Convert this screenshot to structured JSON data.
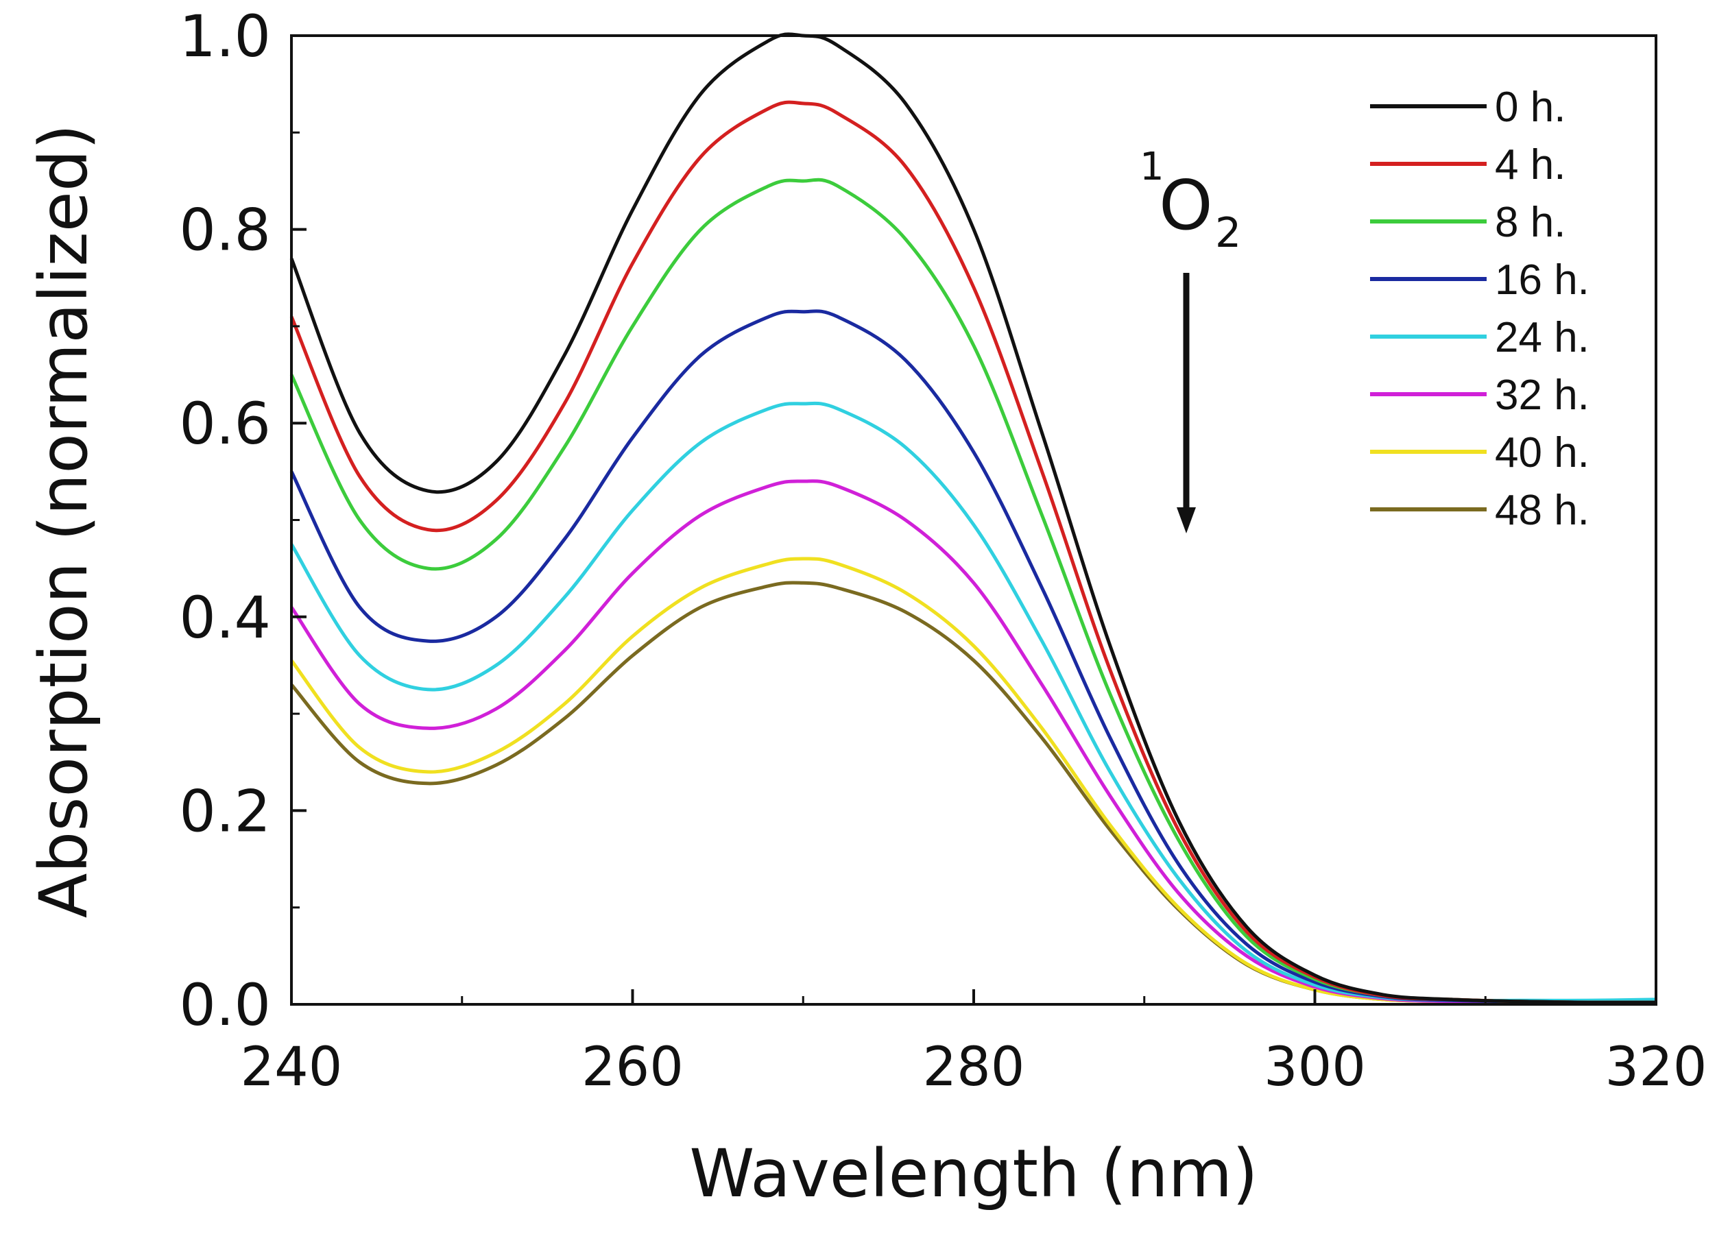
{
  "chart_data": {
    "type": "line",
    "xlabel": "Wavelength (nm)",
    "ylabel": "Absorption (normalized)",
    "xlim": [
      240,
      320
    ],
    "ylim": [
      0,
      1.0
    ],
    "x_ticks": [
      "240",
      "260",
      "280",
      "300",
      "320"
    ],
    "x_tick_values": [
      240,
      260,
      280,
      300,
      320
    ],
    "y_ticks": [
      "0.0",
      "0.2",
      "0.4",
      "0.6",
      "0.8",
      "1.0"
    ],
    "y_tick_values": [
      0,
      0.2,
      0.4,
      0.6,
      0.8,
      1.0
    ],
    "grid": false,
    "legend_position": "top-right",
    "annotation": {
      "superscript": "1",
      "main": "O",
      "subscript": "2",
      "arrow": "down"
    },
    "x": [
      240,
      244,
      248,
      252,
      256,
      260,
      264,
      268,
      270,
      272,
      276,
      280,
      284,
      288,
      292,
      296,
      300,
      304,
      308,
      312,
      316,
      320
    ],
    "series": [
      {
        "name": "0 h.",
        "color": "#111111",
        "values": [
          0.77,
          0.59,
          0.53,
          0.56,
          0.67,
          0.82,
          0.94,
          0.995,
          1.0,
          0.99,
          0.93,
          0.8,
          0.59,
          0.37,
          0.19,
          0.08,
          0.03,
          0.01,
          0.005,
          0.003,
          0.002,
          0.002
        ]
      },
      {
        "name": "4 h.",
        "color": "#d42020",
        "values": [
          0.71,
          0.545,
          0.49,
          0.52,
          0.62,
          0.765,
          0.875,
          0.925,
          0.93,
          0.92,
          0.865,
          0.74,
          0.55,
          0.345,
          0.18,
          0.075,
          0.028,
          0.009,
          0.005,
          0.003,
          0.002,
          0.002
        ]
      },
      {
        "name": "8 h.",
        "color": "#3ccc3c",
        "values": [
          0.65,
          0.5,
          0.45,
          0.48,
          0.575,
          0.7,
          0.8,
          0.845,
          0.85,
          0.845,
          0.79,
          0.68,
          0.505,
          0.32,
          0.17,
          0.07,
          0.026,
          0.009,
          0.005,
          0.003,
          0.002,
          0.002
        ]
      },
      {
        "name": "16 h.",
        "color": "#1a2aa0",
        "values": [
          0.55,
          0.41,
          0.375,
          0.4,
          0.48,
          0.585,
          0.67,
          0.71,
          0.715,
          0.71,
          0.665,
          0.57,
          0.43,
          0.275,
          0.145,
          0.062,
          0.023,
          0.008,
          0.004,
          0.003,
          0.002,
          0.002
        ]
      },
      {
        "name": "24 h.",
        "color": "#30d0e0",
        "values": [
          0.475,
          0.36,
          0.325,
          0.35,
          0.42,
          0.51,
          0.58,
          0.615,
          0.62,
          0.615,
          0.575,
          0.495,
          0.375,
          0.24,
          0.13,
          0.055,
          0.02,
          0.007,
          0.004,
          0.004,
          0.004,
          0.005
        ]
      },
      {
        "name": "32 h.",
        "color": "#d020d8",
        "values": [
          0.41,
          0.31,
          0.285,
          0.305,
          0.365,
          0.445,
          0.505,
          0.535,
          0.54,
          0.535,
          0.5,
          0.435,
          0.33,
          0.215,
          0.115,
          0.05,
          0.018,
          0.006,
          0.003,
          0.003,
          0.002,
          0.002
        ]
      },
      {
        "name": "40 h.",
        "color": "#f0e020",
        "values": [
          0.355,
          0.265,
          0.24,
          0.26,
          0.31,
          0.38,
          0.43,
          0.455,
          0.46,
          0.455,
          0.425,
          0.37,
          0.285,
          0.185,
          0.1,
          0.042,
          0.015,
          0.005,
          0.003,
          0.002,
          0.002,
          0.002
        ]
      },
      {
        "name": "48 h.",
        "color": "#7a6a20",
        "values": [
          0.33,
          0.25,
          0.228,
          0.247,
          0.295,
          0.36,
          0.41,
          0.432,
          0.435,
          0.43,
          0.405,
          0.355,
          0.275,
          0.18,
          0.098,
          0.041,
          0.015,
          0.005,
          0.003,
          0.002,
          0.002,
          0.002
        ]
      }
    ]
  }
}
